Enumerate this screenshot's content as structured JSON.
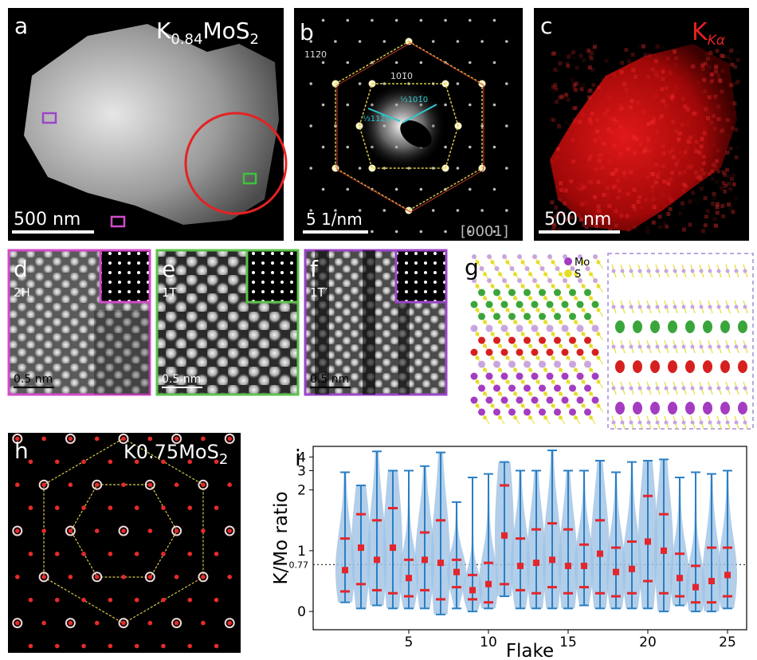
{
  "panels": {
    "a": {
      "label": "a",
      "title": {
        "parts": [
          "K",
          "0.84",
          "MoS",
          "2"
        ],
        "sub": [
          false,
          true,
          false,
          true
        ]
      },
      "scale_bar": "500 nm"
    },
    "b": {
      "label": "b",
      "spots": [
        "112̄0",
        "101̄0"
      ],
      "inner_spots": [
        "⅓101̄0",
        "⅓112̄0"
      ],
      "scale_bar": "5 1/nm",
      "zone_axis": "[0001]"
    },
    "c": {
      "label": "c",
      "element": "K",
      "line": "Kα",
      "scale_bar": "500 nm"
    },
    "d": {
      "label": "d",
      "phase": "2H",
      "scale_bar": "0.5 nm"
    },
    "e": {
      "label": "e",
      "phase": "1T",
      "scale_bar": "0.5 nm"
    },
    "f": {
      "label": "f",
      "phase": "1T′",
      "scale_bar": "0.5 nm"
    },
    "g": {
      "label": "g",
      "legend": [
        "Mo",
        "S"
      ]
    },
    "h": {
      "label": "h",
      "title": {
        "parts": [
          "K",
          "0.75",
          "MoS",
          "2"
        ],
        "sub": [
          false,
          false,
          false,
          true
        ]
      }
    }
  },
  "chart_data": {
    "type": "violin",
    "label": "i",
    "x_label": "Flake",
    "y_label": "K/Mo ratio",
    "x": [
      1,
      2,
      3,
      4,
      5,
      6,
      7,
      8,
      9,
      10,
      11,
      12,
      13,
      14,
      15,
      16,
      17,
      18,
      19,
      20,
      21,
      22,
      23,
      24,
      25
    ],
    "min": [
      0.15,
      0.05,
      0.1,
      0.05,
      0.05,
      0.05,
      -0.05,
      0.05,
      0.0,
      0.05,
      0.25,
      0.05,
      0.05,
      0.05,
      0.05,
      0.1,
      0.05,
      0.05,
      0.05,
      0.05,
      0.0,
      0.1,
      0.0,
      0.0,
      0.05
    ],
    "q1": [
      0.33,
      0.45,
      0.35,
      0.3,
      0.25,
      0.35,
      0.2,
      0.4,
      0.2,
      0.15,
      0.45,
      0.35,
      0.3,
      0.4,
      0.3,
      0.4,
      0.3,
      0.25,
      0.3,
      0.5,
      0.3,
      0.25,
      0.15,
      0.15,
      0.25
    ],
    "median": [
      0.68,
      1.05,
      0.85,
      1.05,
      0.55,
      0.85,
      0.8,
      0.65,
      0.35,
      0.45,
      1.25,
      0.75,
      0.8,
      0.85,
      0.75,
      0.75,
      0.95,
      0.65,
      0.7,
      1.15,
      1.0,
      0.55,
      0.4,
      0.5,
      0.6
    ],
    "q3": [
      1.2,
      1.6,
      1.5,
      1.7,
      0.85,
      1.3,
      1.5,
      0.85,
      0.6,
      0.8,
      2.2,
      1.2,
      1.35,
      1.45,
      1.35,
      1.1,
      1.5,
      1.05,
      1.15,
      1.9,
      1.6,
      0.95,
      0.75,
      1.05,
      1.05
    ],
    "max": [
      2.9,
      2.2,
      4.5,
      3.0,
      3.0,
      3.3,
      4.4,
      1.8,
      2.6,
      2.8,
      3.6,
      3.0,
      3.0,
      4.6,
      3.0,
      3.0,
      3.7,
      2.9,
      3.6,
      3.7,
      3.8,
      2.6,
      2.9,
      2.8,
      3.0
    ],
    "color": "#2a7fc4",
    "body_color": "#9fc2e4",
    "marker_color": "#e3262b",
    "yscale": "symlog",
    "linthresh": 2,
    "xlim": [
      -1,
      26.2
    ],
    "ylim": [
      -0.3,
      5
    ],
    "xticks": [
      5,
      10,
      15,
      20,
      25
    ],
    "yticks": [
      0,
      1,
      2,
      3,
      4
    ],
    "hline": 0.77
  }
}
